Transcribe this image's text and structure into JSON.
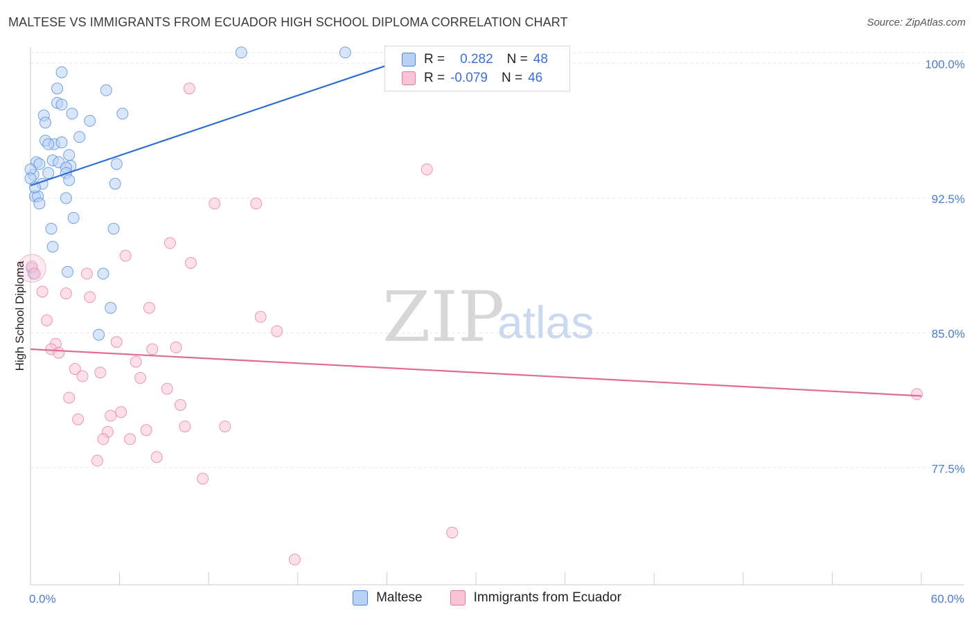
{
  "title": "MALTESE VS IMMIGRANTS FROM ECUADOR HIGH SCHOOL DIPLOMA CORRELATION CHART",
  "source": "Source: ZipAtlas.com",
  "colors": {
    "maltese_fill": "#b9d1f5",
    "maltese_stroke": "#4a86d8",
    "maltese_line": "#2d6fd0",
    "ecuador_fill": "#f9c4d6",
    "ecuador_stroke": "#e07aa0",
    "ecuador_line": "#e06a98",
    "tick_text": "#4a7cd0",
    "grid": "#e6e6e6"
  },
  "legend": {
    "rows": [
      {
        "r_label": "R =",
        "r_value": "0.282",
        "n_label": "N =",
        "n_value": "48"
      },
      {
        "r_label": "R =",
        "r_value": "-0.079",
        "n_label": "N =",
        "n_value": "46"
      }
    ]
  },
  "bottom_legend": [
    "Maltese",
    "Immigrants from Ecuador"
  ],
  "watermark": {
    "part1": "ZIP",
    "part2": "atlas"
  },
  "chart_data": {
    "type": "scatter",
    "title": "MALTESE VS IMMIGRANTS FROM ECUADOR HIGH SCHOOL DIPLOMA CORRELATION CHART",
    "xlabel": "",
    "ylabel": "High School Diploma",
    "xlim": [
      0,
      60
    ],
    "ylim": [
      71,
      100.9
    ],
    "x_tick_labels": [
      {
        "value": 0,
        "label": "0.0%"
      },
      {
        "value": 60,
        "label": "60.0%"
      }
    ],
    "x_minor_ticks": [
      0,
      6,
      12,
      18,
      24,
      30,
      36,
      42,
      48,
      54,
      60
    ],
    "y_ticks": [
      {
        "value": 100,
        "label": "100.0%"
      },
      {
        "value": 92.5,
        "label": "92.5%"
      },
      {
        "value": 85,
        "label": "85.0%"
      },
      {
        "value": 77.5,
        "label": "77.5%"
      }
    ],
    "grid": true,
    "series": [
      {
        "name": "Maltese",
        "R": 0.282,
        "N": 48,
        "trend": {
          "x": [
            0,
            25.5
          ],
          "y": [
            93.2,
            100.3
          ]
        },
        "points": [
          {
            "x": 14.2,
            "y": 100.6
          },
          {
            "x": 21.2,
            "y": 100.6
          },
          {
            "x": 2.1,
            "y": 99.5
          },
          {
            "x": 1.8,
            "y": 98.6
          },
          {
            "x": 5.1,
            "y": 98.5
          },
          {
            "x": 1.8,
            "y": 97.8
          },
          {
            "x": 2.1,
            "y": 97.7
          },
          {
            "x": 0.9,
            "y": 97.1
          },
          {
            "x": 2.8,
            "y": 97.2
          },
          {
            "x": 6.2,
            "y": 97.2
          },
          {
            "x": 1.0,
            "y": 96.7
          },
          {
            "x": 4.0,
            "y": 96.8
          },
          {
            "x": 3.3,
            "y": 95.9
          },
          {
            "x": 1.0,
            "y": 95.7
          },
          {
            "x": 1.6,
            "y": 95.5
          },
          {
            "x": 2.1,
            "y": 95.6
          },
          {
            "x": 1.2,
            "y": 95.5
          },
          {
            "x": 2.6,
            "y": 94.9
          },
          {
            "x": 0.4,
            "y": 94.5
          },
          {
            "x": 0.6,
            "y": 94.4
          },
          {
            "x": 1.5,
            "y": 94.6
          },
          {
            "x": 1.9,
            "y": 94.5
          },
          {
            "x": 2.7,
            "y": 94.3
          },
          {
            "x": 2.4,
            "y": 94.2
          },
          {
            "x": 5.8,
            "y": 94.4
          },
          {
            "x": 1.2,
            "y": 93.9
          },
          {
            "x": 2.4,
            "y": 93.9
          },
          {
            "x": 0.2,
            "y": 93.8
          },
          {
            "x": 2.6,
            "y": 93.5
          },
          {
            "x": 0.8,
            "y": 93.3
          },
          {
            "x": 5.7,
            "y": 93.3
          },
          {
            "x": 0.3,
            "y": 92.6
          },
          {
            "x": 0.5,
            "y": 92.6
          },
          {
            "x": 2.4,
            "y": 92.5
          },
          {
            "x": 0.6,
            "y": 92.2
          },
          {
            "x": 2.9,
            "y": 91.4
          },
          {
            "x": 1.4,
            "y": 90.8
          },
          {
            "x": 5.6,
            "y": 90.8
          },
          {
            "x": 1.5,
            "y": 89.8
          },
          {
            "x": 0.1,
            "y": 88.6
          },
          {
            "x": 0.2,
            "y": 88.3
          },
          {
            "x": 2.5,
            "y": 88.4
          },
          {
            "x": 4.9,
            "y": 88.3
          },
          {
            "x": 5.4,
            "y": 86.4
          },
          {
            "x": 4.6,
            "y": 84.9
          },
          {
            "x": 0.0,
            "y": 94.1
          },
          {
            "x": 0.0,
            "y": 93.6
          },
          {
            "x": 0.3,
            "y": 93.1
          }
        ]
      },
      {
        "name": "Immigrants from Ecuador",
        "R": -0.079,
        "N": 46,
        "trend": {
          "x": [
            0,
            60
          ],
          "y": [
            84.1,
            81.5
          ]
        },
        "points": [
          {
            "x": 10.7,
            "y": 98.6
          },
          {
            "x": 26.7,
            "y": 94.1
          },
          {
            "x": 12.4,
            "y": 92.2
          },
          {
            "x": 15.2,
            "y": 92.2
          },
          {
            "x": 9.4,
            "y": 90.0
          },
          {
            "x": 6.4,
            "y": 89.3
          },
          {
            "x": 10.8,
            "y": 88.9
          },
          {
            "x": 0.1,
            "y": 88.7
          },
          {
            "x": 0.3,
            "y": 88.3
          },
          {
            "x": 3.8,
            "y": 88.3
          },
          {
            "x": 0.8,
            "y": 87.3
          },
          {
            "x": 2.4,
            "y": 87.2
          },
          {
            "x": 4.0,
            "y": 87.0
          },
          {
            "x": 8.0,
            "y": 86.4
          },
          {
            "x": 15.5,
            "y": 85.9
          },
          {
            "x": 1.1,
            "y": 85.7
          },
          {
            "x": 16.6,
            "y": 85.1
          },
          {
            "x": 5.8,
            "y": 84.5
          },
          {
            "x": 1.7,
            "y": 84.4
          },
          {
            "x": 9.8,
            "y": 84.2
          },
          {
            "x": 1.4,
            "y": 84.1
          },
          {
            "x": 8.2,
            "y": 84.1
          },
          {
            "x": 1.9,
            "y": 83.9
          },
          {
            "x": 7.1,
            "y": 83.4
          },
          {
            "x": 3.0,
            "y": 83.0
          },
          {
            "x": 4.7,
            "y": 82.8
          },
          {
            "x": 3.5,
            "y": 82.6
          },
          {
            "x": 7.4,
            "y": 82.5
          },
          {
            "x": 9.2,
            "y": 81.9
          },
          {
            "x": 2.6,
            "y": 81.4
          },
          {
            "x": 10.1,
            "y": 81.0
          },
          {
            "x": 6.1,
            "y": 80.6
          },
          {
            "x": 5.4,
            "y": 80.4
          },
          {
            "x": 3.2,
            "y": 80.2
          },
          {
            "x": 10.4,
            "y": 79.8
          },
          {
            "x": 13.1,
            "y": 79.8
          },
          {
            "x": 7.8,
            "y": 79.6
          },
          {
            "x": 5.2,
            "y": 79.5
          },
          {
            "x": 4.9,
            "y": 79.1
          },
          {
            "x": 6.7,
            "y": 79.1
          },
          {
            "x": 8.5,
            "y": 78.1
          },
          {
            "x": 4.5,
            "y": 77.9
          },
          {
            "x": 11.6,
            "y": 76.9
          },
          {
            "x": 28.4,
            "y": 73.9
          },
          {
            "x": 17.8,
            "y": 72.4
          },
          {
            "x": 59.7,
            "y": 81.6
          }
        ]
      }
    ]
  }
}
